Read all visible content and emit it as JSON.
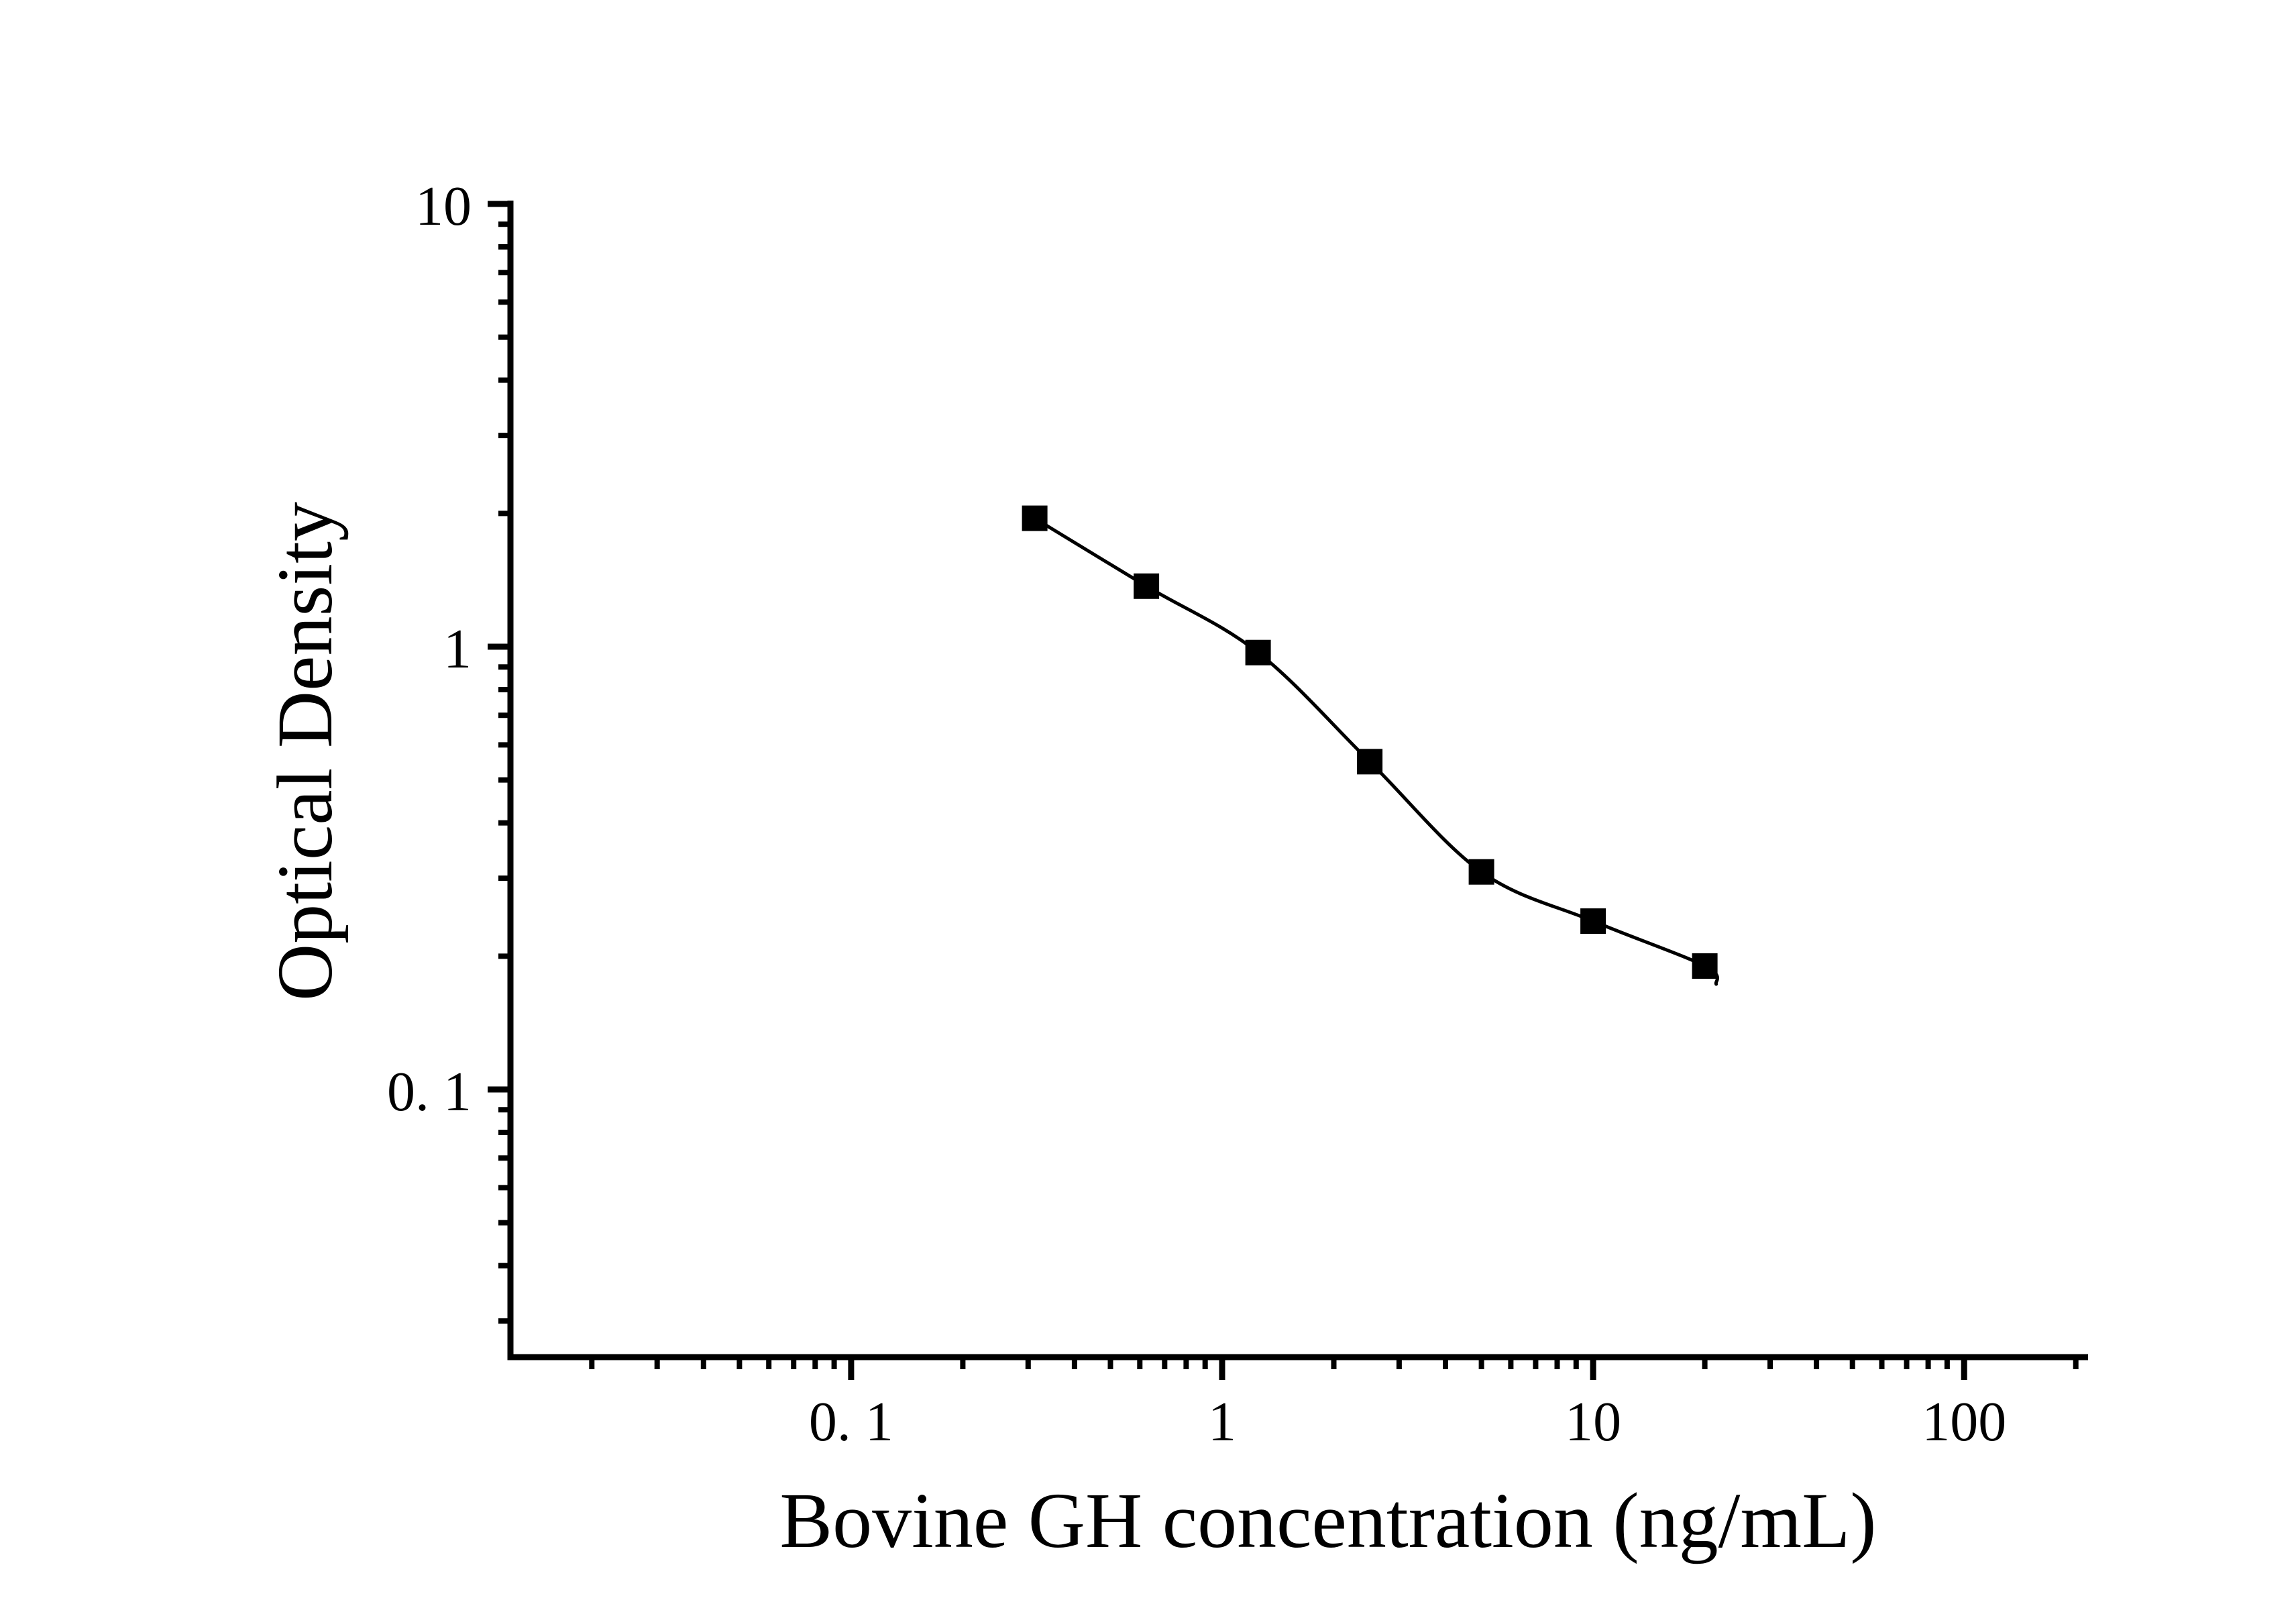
{
  "chart_data": {
    "type": "scatter",
    "title": "",
    "xlabel": "Bovine GH concentration (ng/mL)",
    "ylabel": "Optical Density",
    "x_scale": "log",
    "y_scale": "log",
    "xlim": [
      0.0123,
      213
    ],
    "ylim": [
      0.0248,
      10
    ],
    "grid": false,
    "legend": "none",
    "x_major_ticks": [
      {
        "value": 0.1,
        "label": "0. 1"
      },
      {
        "value": 1,
        "label": "1"
      },
      {
        "value": 10,
        "label": "10"
      },
      {
        "value": 100,
        "label": "100"
      }
    ],
    "y_major_ticks": [
      {
        "value": 0.1,
        "label": "0. 1"
      },
      {
        "value": 1,
        "label": "1"
      },
      {
        "value": 10,
        "label": "10"
      }
    ],
    "minor_ticks": "log-decades",
    "series": [
      {
        "name": "standard-curve-points",
        "marker": "filled-square",
        "color": "#000000",
        "x": [
          0.3125,
          0.625,
          1.25,
          2.5,
          5,
          10,
          20
        ],
        "y": [
          1.95,
          1.37,
          0.97,
          0.55,
          0.31,
          0.24,
          0.19
        ]
      }
    ],
    "fit_line": {
      "name": "4pl-fit-curve",
      "color": "#000000",
      "style": "solid"
    },
    "colors": {
      "foreground": "#000000",
      "background": "#ffffff"
    }
  }
}
